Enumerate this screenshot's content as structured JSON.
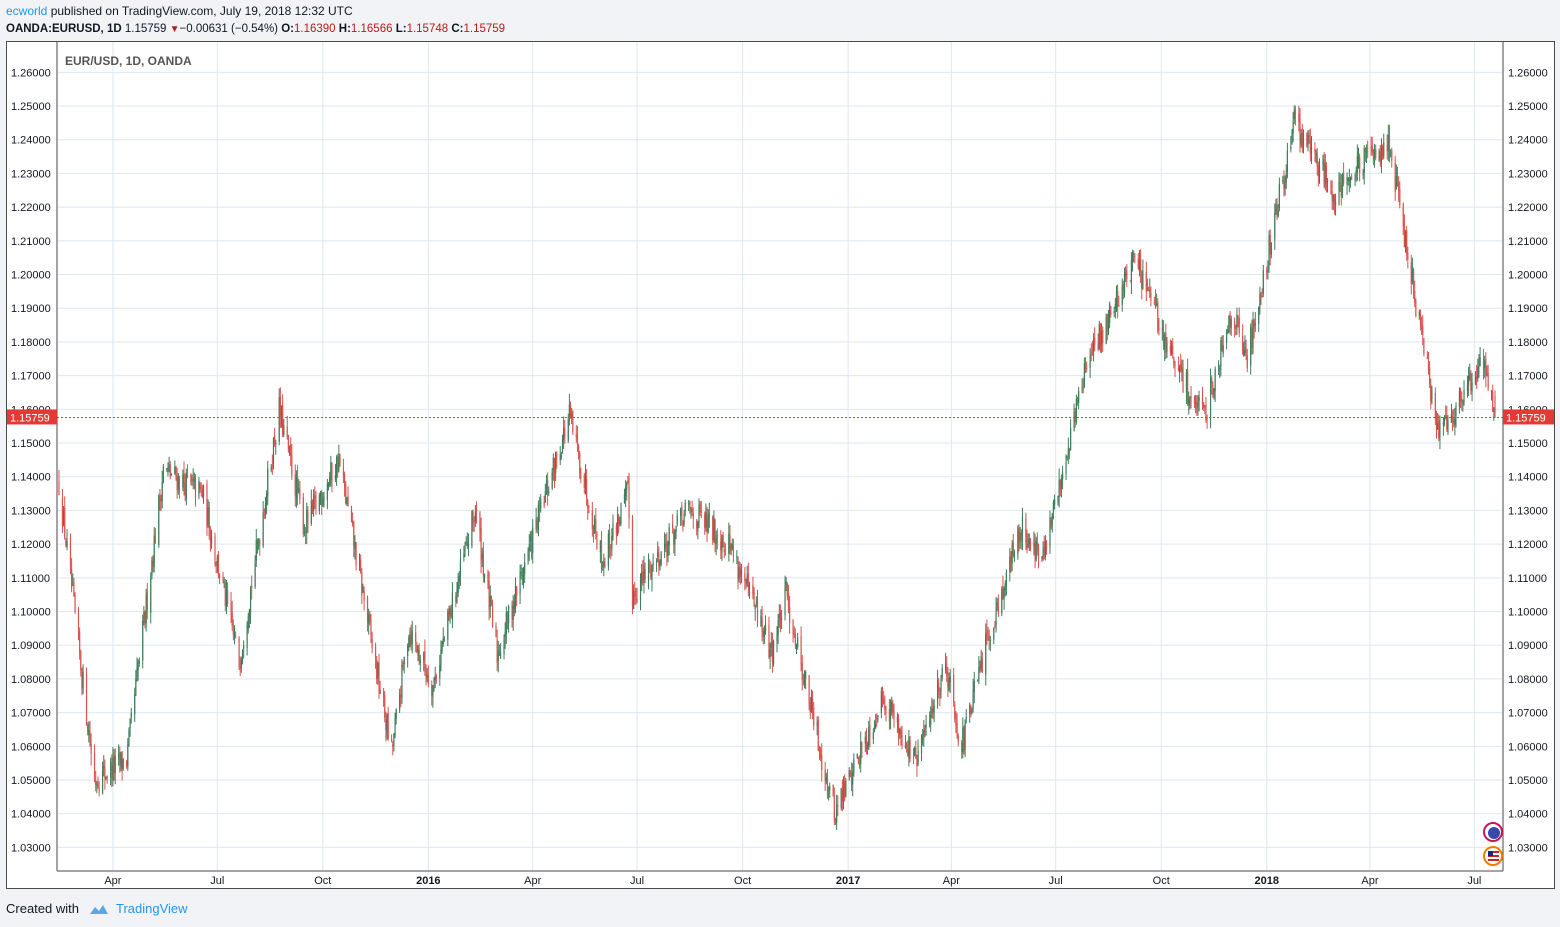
{
  "header": {
    "author": "ecworld",
    "published": "published on TradingView.com, July 19, 2018 12:32 UTC",
    "symbol": "OANDA:EURUSD, 1D",
    "last": "1.15759",
    "change_arrow": "▼",
    "change": "−0.00631 (−0.54%)",
    "o_label": "O:",
    "o": "1.16390",
    "h_label": "H:",
    "h": "1.16566",
    "l_label": "L:",
    "l": "1.15748",
    "c_label": "C:",
    "c": "1.15759"
  },
  "footer": {
    "created_with": "Created with",
    "brand": "TradingView",
    "logo_icon": "tradingview-cloud-icon"
  },
  "colors": {
    "up": "#3e7d5a",
    "down": "#d9534f",
    "price_line": "#e53935",
    "grid": "#dfe7ef",
    "axis_text": "#131722",
    "eur_badge": "#c2185b",
    "usd_badge": "#f57c00"
  },
  "chart_data": {
    "type": "candlestick",
    "title": "EUR/USD, 1D, OANDA",
    "interval": "1D",
    "current_price": 1.15759,
    "current_price_label": "1.15759",
    "ylim": [
      1.023,
      1.269
    ],
    "price_axis_ticks": [
      "1.26000",
      "1.25000",
      "1.24000",
      "1.23000",
      "1.22000",
      "1.21000",
      "1.20000",
      "1.19000",
      "1.18000",
      "1.17000",
      "1.16000",
      "1.15000",
      "1.14000",
      "1.13000",
      "1.12000",
      "1.11000",
      "1.10000",
      "1.09000",
      "1.08000",
      "1.07000",
      "1.06000",
      "1.05000",
      "1.04000",
      "1.03000"
    ],
    "time_axis_labels": [
      "Apr",
      "Jul",
      "Oct",
      "2016",
      "Apr",
      "Jul",
      "Oct",
      "2017",
      "Apr",
      "Jul",
      "Oct",
      "2018",
      "Apr",
      "Jul"
    ],
    "date_range": [
      "2015-02-13",
      "2018-07-19"
    ],
    "legend_icons": [
      "eur-flag-icon",
      "usd-flag-icon"
    ],
    "series": [
      {
        "name": "EUR/USD",
        "key_points": [
          {
            "date": "2015-02-13",
            "close": 1.138
          },
          {
            "date": "2015-03-16",
            "close": 1.05
          },
          {
            "date": "2015-04-13",
            "close": 1.056
          },
          {
            "date": "2015-05-15",
            "close": 1.142
          },
          {
            "date": "2015-06-18",
            "close": 1.135
          },
          {
            "date": "2015-07-20",
            "close": 1.085
          },
          {
            "date": "2015-08-24",
            "close": 1.16
          },
          {
            "date": "2015-09-15",
            "close": 1.125
          },
          {
            "date": "2015-10-15",
            "close": 1.145
          },
          {
            "date": "2015-11-30",
            "close": 1.058
          },
          {
            "date": "2015-12-15",
            "close": 1.095
          },
          {
            "date": "2016-01-05",
            "close": 1.078
          },
          {
            "date": "2016-02-11",
            "close": 1.13
          },
          {
            "date": "2016-03-01",
            "close": 1.087
          },
          {
            "date": "2016-05-03",
            "close": 1.158
          },
          {
            "date": "2016-06-01",
            "close": 1.115
          },
          {
            "date": "2016-06-23",
            "close": 1.135
          },
          {
            "date": "2016-06-27",
            "close": 1.105
          },
          {
            "date": "2016-08-15",
            "close": 1.13
          },
          {
            "date": "2016-09-20",
            "close": 1.12
          },
          {
            "date": "2016-10-26",
            "close": 1.088
          },
          {
            "date": "2016-11-08",
            "close": 1.105
          },
          {
            "date": "2016-12-20",
            "close": 1.04
          },
          {
            "date": "2017-02-01",
            "close": 1.075
          },
          {
            "date": "2017-03-01",
            "close": 1.055
          },
          {
            "date": "2017-03-27",
            "close": 1.085
          },
          {
            "date": "2017-04-10",
            "close": 1.06
          },
          {
            "date": "2017-05-05",
            "close": 1.095
          },
          {
            "date": "2017-06-01",
            "close": 1.125
          },
          {
            "date": "2017-06-20",
            "close": 1.115
          },
          {
            "date": "2017-07-25",
            "close": 1.17
          },
          {
            "date": "2017-09-08",
            "close": 1.205
          },
          {
            "date": "2017-10-10",
            "close": 1.175
          },
          {
            "date": "2017-11-07",
            "close": 1.157
          },
          {
            "date": "2017-12-01",
            "close": 1.19
          },
          {
            "date": "2017-12-15",
            "close": 1.175
          },
          {
            "date": "2018-01-25",
            "close": 1.245
          },
          {
            "date": "2018-03-01",
            "close": 1.225
          },
          {
            "date": "2018-04-17",
            "close": 1.24
          },
          {
            "date": "2018-05-29",
            "close": 1.155
          },
          {
            "date": "2018-06-14",
            "close": 1.16
          },
          {
            "date": "2018-07-09",
            "close": 1.175
          },
          {
            "date": "2018-07-19",
            "open": 1.1639,
            "high": 1.16566,
            "low": 1.15748,
            "close": 1.15759
          }
        ]
      }
    ]
  }
}
